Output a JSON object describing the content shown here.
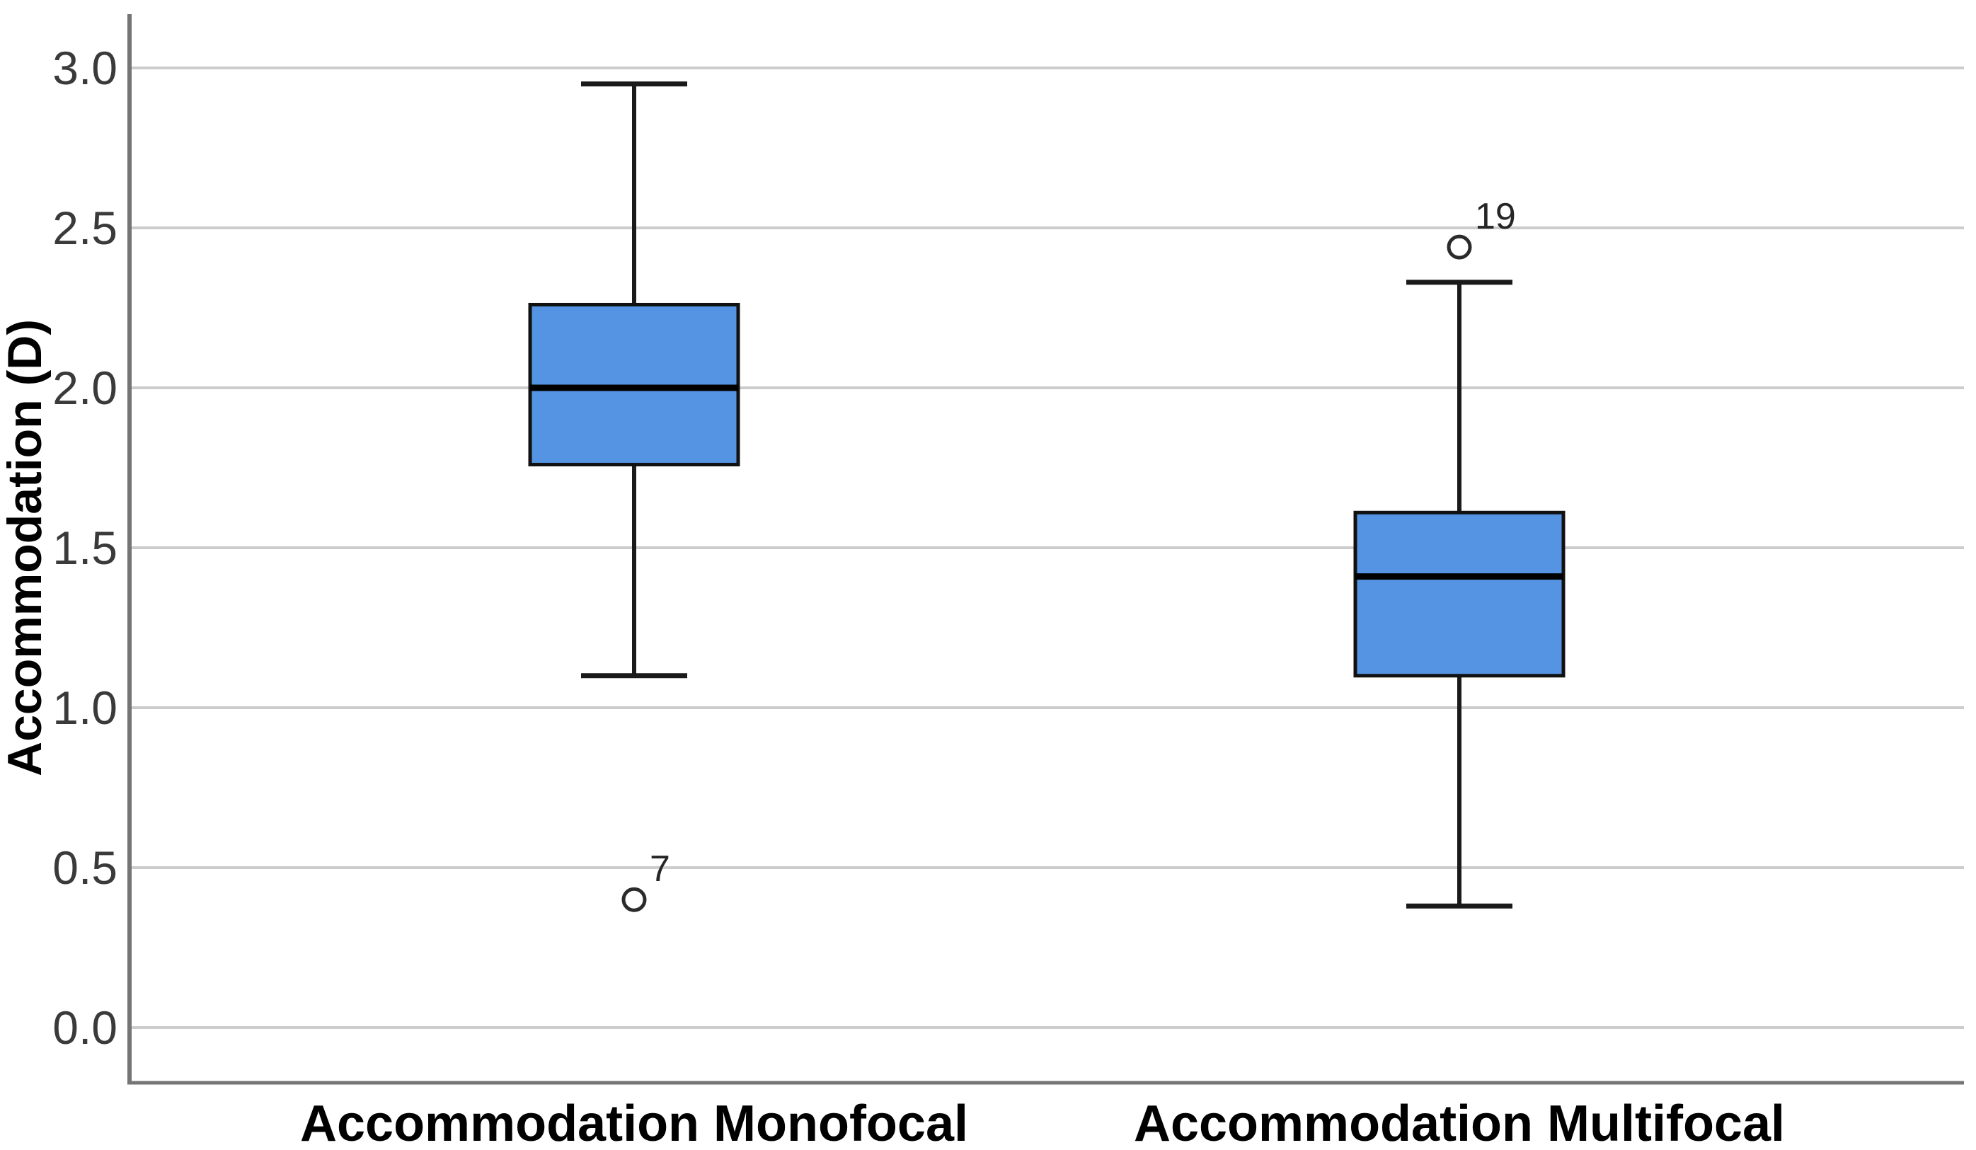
{
  "figure": {
    "background": "#ffffff"
  },
  "chart_data": {
    "type": "boxplot",
    "title": "",
    "xlabel": "",
    "ylabel": "Accommodation (D)",
    "ylim": [
      -0.17,
      3.17
    ],
    "grid": true,
    "yticks": [
      0.0,
      0.5,
      1.0,
      1.5,
      2.0,
      2.5,
      3.0
    ],
    "ytick_labels": [
      "0.0",
      "0.5",
      "1.0",
      "1.5",
      "2.0",
      "2.5",
      "3.0"
    ],
    "categories": [
      "Accommodation Monofocal",
      "Accommodation Multifocal"
    ],
    "series": [
      {
        "name": "Accommodation Monofocal",
        "whisker_low": 1.1,
        "q1": 1.76,
        "median": 2.0,
        "q3": 2.26,
        "whisker_high": 2.95,
        "outliers": [
          {
            "value": 0.4,
            "label": "7"
          }
        ]
      },
      {
        "name": "Accommodation Multifocal",
        "whisker_low": 0.38,
        "q1": 1.1,
        "median": 1.41,
        "q3": 1.61,
        "whisker_high": 2.33,
        "outliers": [
          {
            "value": 2.44,
            "label": "19"
          }
        ]
      }
    ],
    "colors": {
      "box_fill": "#5594e2",
      "box_border": "#111111",
      "median_line": "#000000",
      "whisker": "#1a1a1a",
      "gridline": "#cccccc",
      "axis_line": "#757575",
      "tick_text": "#3a3a3a",
      "label_text": "#000000",
      "outlier_stroke": "#2b2b2b"
    }
  }
}
